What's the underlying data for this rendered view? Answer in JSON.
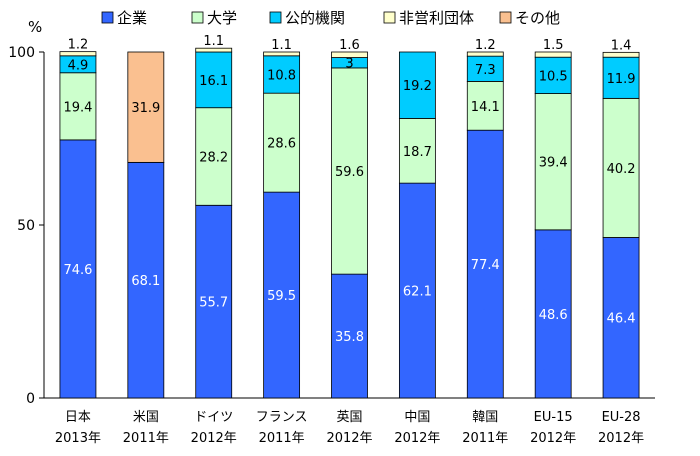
{
  "chart_data": {
    "type": "bar",
    "stacked": true,
    "percent": true,
    "ylabel": "%",
    "ylim": [
      0,
      100
    ],
    "yticks": [
      0,
      50,
      100
    ],
    "grid": false,
    "legend_position": "top",
    "categories": [
      {
        "name": "日本",
        "year": "2013年"
      },
      {
        "name": "米国",
        "year": "2011年"
      },
      {
        "name": "ドイツ",
        "year": "2012年"
      },
      {
        "name": "フランス",
        "year": "2011年"
      },
      {
        "name": "英国",
        "year": "2012年"
      },
      {
        "name": "中国",
        "year": "2012年"
      },
      {
        "name": "韓国",
        "year": "2011年"
      },
      {
        "name": "EU-15",
        "year": "2012年"
      },
      {
        "name": "EU-28",
        "year": "2012年"
      }
    ],
    "series": [
      {
        "name": "企業",
        "color": "#3366ff",
        "label_color": "#ffffff",
        "values": [
          74.6,
          68.1,
          55.7,
          59.5,
          35.8,
          62.1,
          77.4,
          48.6,
          46.4
        ]
      },
      {
        "name": "大学",
        "color": "#ccffcc",
        "label_color": "#000000",
        "values": [
          19.4,
          null,
          28.2,
          28.6,
          59.6,
          18.7,
          14.1,
          39.4,
          40.2
        ]
      },
      {
        "name": "公的機関",
        "color": "#00ccff",
        "label_color": "#000000",
        "values": [
          4.9,
          null,
          16.1,
          10.8,
          3.0,
          19.2,
          7.3,
          10.5,
          11.9
        ]
      },
      {
        "name": "非営利団体",
        "color": "#ffffcc",
        "label_color": "#000000",
        "values": [
          1.2,
          null,
          1.1,
          1.1,
          1.6,
          null,
          1.2,
          1.5,
          1.4
        ]
      },
      {
        "name": "その他",
        "color": "#fac090",
        "label_color": "#000000",
        "values": [
          null,
          31.9,
          null,
          null,
          null,
          null,
          null,
          null,
          null
        ]
      }
    ]
  }
}
